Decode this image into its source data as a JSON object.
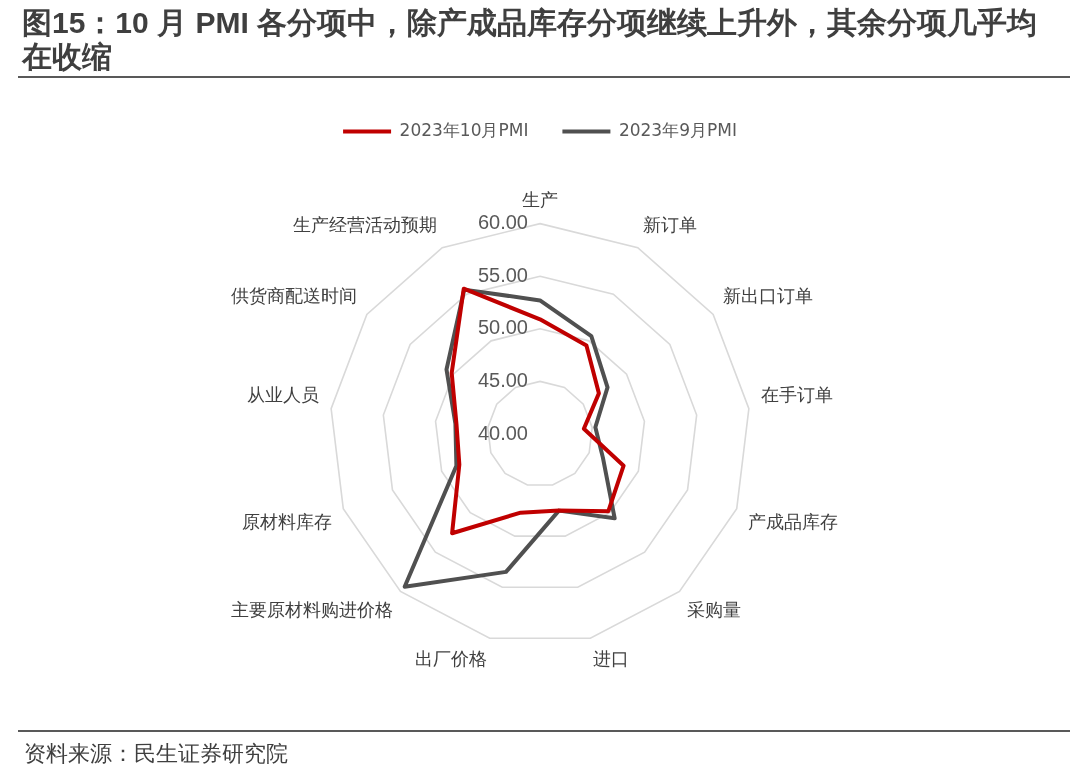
{
  "chart_data": {
    "type": "radar",
    "title": "图15：10 月 PMI 各分项中，除产成品库存分项继续上升外，其余分项几乎均在收缩",
    "categories": [
      "生产",
      "新订单",
      "新出口订单",
      "在手订单",
      "产成品库存",
      "采购量",
      "进口",
      "出厂价格",
      "主要原材料购进价格",
      "原材料库存",
      "从业人员",
      "供货商配送时间",
      "生产经营活动预期"
    ],
    "series": [
      {
        "name": "2023年10月PMI",
        "color": "#c00000",
        "values": [
          50.9,
          49.5,
          46.8,
          44.2,
          48.5,
          49.8,
          47.5,
          47.7,
          52.6,
          48.2,
          48.0,
          50.2,
          55.6
        ]
      },
      {
        "name": "2023年9月PMI",
        "color": "#505050",
        "values": [
          52.7,
          50.5,
          47.8,
          45.3,
          46.4,
          50.7,
          47.5,
          53.5,
          59.4,
          48.5,
          48.1,
          50.8,
          55.5
        ]
      }
    ],
    "ylim": [
      40,
      60
    ],
    "yticks": [
      {
        "value": 40,
        "label": "40.00"
      },
      {
        "value": 45,
        "label": "45.00"
      },
      {
        "value": 50,
        "label": "50.00"
      },
      {
        "value": 55,
        "label": "55.00"
      },
      {
        "value": 60,
        "label": "60.00"
      }
    ],
    "grid": true,
    "legend": "top",
    "annotations": [
      "资料来源：民生证券研究院"
    ]
  }
}
